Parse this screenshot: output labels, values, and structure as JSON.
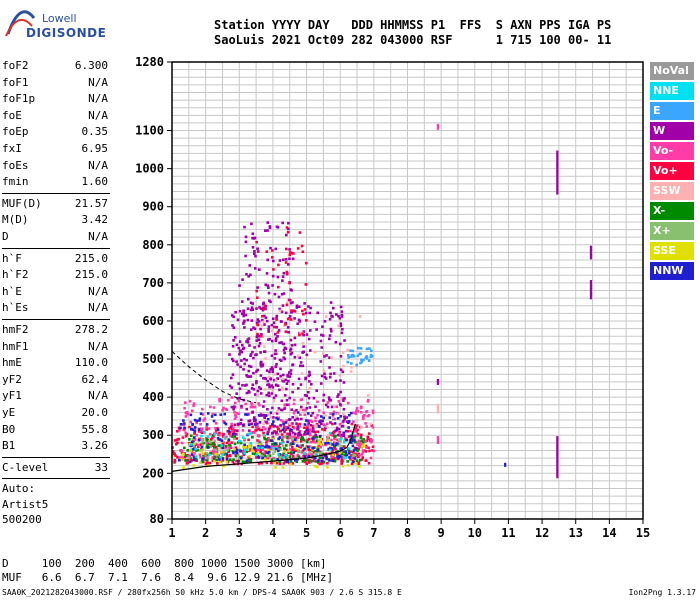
{
  "logo": {
    "line1": "Lowell",
    "line2": "DIGISONDE"
  },
  "header": {
    "labels": "Station YYYY DAY   DDD HHMMSS P1  FFS  S AXN PPS IGA PS",
    "values": "SaoLuis 2021 Oct09 282 043000 RSF      1 715 100 00- 11"
  },
  "params_groups": [
    [
      {
        "key": "foF2",
        "value": "6.300"
      },
      {
        "key": "foF1",
        "value": "N/A"
      },
      {
        "key": "foF1p",
        "value": "N/A"
      },
      {
        "key": "foE",
        "value": "N/A"
      },
      {
        "key": "foEp",
        "value": "0.35"
      },
      {
        "key": "fxI",
        "value": "6.95"
      },
      {
        "key": "foEs",
        "value": "N/A"
      },
      {
        "key": "fmin",
        "value": "1.60"
      }
    ],
    [
      {
        "key": "MUF(D)",
        "value": "21.57"
      },
      {
        "key": "M(D)",
        "value": "3.42"
      },
      {
        "key": "D",
        "value": "N/A"
      }
    ],
    [
      {
        "key": "h`F",
        "value": "215.0"
      },
      {
        "key": "h`F2",
        "value": "215.0"
      },
      {
        "key": "h`E",
        "value": "N/A"
      },
      {
        "key": "h`Es",
        "value": "N/A"
      }
    ],
    [
      {
        "key": "hmF2",
        "value": "278.2"
      },
      {
        "key": "hmF1",
        "value": "N/A"
      },
      {
        "key": "hmE",
        "value": "110.0"
      },
      {
        "key": "yF2",
        "value": "62.4"
      },
      {
        "key": "yF1",
        "value": "N/A"
      },
      {
        "key": "yE",
        "value": "20.0"
      },
      {
        "key": "B0",
        "value": "55.8"
      },
      {
        "key": "B1",
        "value": "3.26"
      }
    ],
    [
      {
        "key": "C-level",
        "value": "33"
      }
    ]
  ],
  "autoscaling": {
    "line1": "Auto:",
    "line2": "Artist5",
    "line3": "500200"
  },
  "legend": [
    {
      "label": "NoVal",
      "color": "#9a9a9a"
    },
    {
      "label": "NNE",
      "color": "#00e0f0"
    },
    {
      "label": "E",
      "color": "#3aa6ff"
    },
    {
      "label": "W",
      "color": "#a000a8"
    },
    {
      "label": "Vo-",
      "color": "#ff3ca8"
    },
    {
      "label": "Vo+",
      "color": "#ff0040"
    },
    {
      "label": "SSW",
      "color": "#ffb0b0"
    },
    {
      "label": "X-",
      "color": "#008a00"
    },
    {
      "label": "X+",
      "color": "#88c070"
    },
    {
      "label": "SSE",
      "color": "#e0e000"
    },
    {
      "label": "NNW",
      "color": "#2020d0"
    }
  ],
  "footer": {
    "d_line": "D     100  200  400  600  800 1000 1500 3000 [km]",
    "muf_line": "MUF   6.6  6.7  7.1  7.6  8.4  9.6 12.9 21.6 [MHz]",
    "file_line": "SAA0K_2021282043000.RSF / 280fx256h 50 kHz 5.0 km / DPS-4 SAA0K 903 / 2.6 S 315.8 E",
    "version": "Ion2Png 1.3.17"
  },
  "chart_data": {
    "type": "scatter",
    "xlim": [
      1,
      15
    ],
    "ylim": [
      80,
      1280
    ],
    "x_ticks": [
      1,
      2,
      3,
      4,
      5,
      6,
      7,
      8,
      9,
      10,
      11,
      12,
      13,
      14,
      15
    ],
    "y_ticks": [
      80,
      200,
      300,
      400,
      500,
      600,
      700,
      800,
      900,
      1000,
      1100,
      1280
    ],
    "y_tick_labels": [
      "80",
      "200",
      "300",
      "400",
      "500",
      "600",
      "700",
      "800",
      "900",
      "1000",
      "1100",
      "1280"
    ],
    "grid": true,
    "series": [
      {
        "name": "NoVal",
        "color": "#9a9a9a"
      },
      {
        "name": "NNE",
        "color": "#00e0f0"
      },
      {
        "name": "E",
        "color": "#3aa6ff"
      },
      {
        "name": "W",
        "color": "#a000a8"
      },
      {
        "name": "Vo-",
        "color": "#ff3ca8"
      },
      {
        "name": "Vo+",
        "color": "#ff0040"
      },
      {
        "name": "SSW",
        "color": "#ffb0b0"
      },
      {
        "name": "X-",
        "color": "#008a00"
      },
      {
        "name": "X+",
        "color": "#88c070"
      },
      {
        "name": "SSE",
        "color": "#e0e000"
      },
      {
        "name": "NNW",
        "color": "#2020d0"
      }
    ],
    "clusters": [
      {
        "series": "Vo+",
        "x": [
          1.0,
          7.0
        ],
        "y": [
          225,
          330
        ],
        "n": 420
      },
      {
        "series": "Vo-",
        "x": [
          1.2,
          7.0
        ],
        "y": [
          240,
          400
        ],
        "n": 340
      },
      {
        "series": "X-",
        "x": [
          1.3,
          6.8
        ],
        "y": [
          230,
          300
        ],
        "n": 160
      },
      {
        "series": "X+",
        "x": [
          1.5,
          6.5
        ],
        "y": [
          235,
          300
        ],
        "n": 80
      },
      {
        "series": "SSE",
        "x": [
          1.0,
          6.8
        ],
        "y": [
          215,
          290
        ],
        "n": 70
      },
      {
        "series": "NNW",
        "x": [
          1.2,
          6.5
        ],
        "y": [
          230,
          360
        ],
        "n": 200
      },
      {
        "series": "W",
        "x": [
          2.7,
          6.2
        ],
        "y": [
          300,
          650
        ],
        "n": 380
      },
      {
        "series": "W",
        "x": [
          3.0,
          4.6
        ],
        "y": [
          420,
          860
        ],
        "n": 160
      },
      {
        "series": "E",
        "x": [
          6.2,
          7.0
        ],
        "y": [
          480,
          530
        ],
        "n": 30
      },
      {
        "series": "NNE",
        "x": [
          1.5,
          6.5
        ],
        "y": [
          240,
          310
        ],
        "n": 40
      },
      {
        "series": "SSW",
        "x": [
          3.5,
          7.0
        ],
        "y": [
          300,
          650
        ],
        "n": 60
      },
      {
        "series": "Vo+",
        "x": [
          3.5,
          5.0
        ],
        "y": [
          560,
          850
        ],
        "n": 50
      }
    ],
    "isolated_points": [
      {
        "series": "W",
        "x": 12.45,
        "y": [
          935,
          1045
        ]
      },
      {
        "series": "W",
        "x": 12.45,
        "y": [
          190,
          295
        ]
      },
      {
        "series": "W",
        "x": 13.45,
        "y": [
          765,
          795
        ]
      },
      {
        "series": "W",
        "x": 13.45,
        "y": [
          660,
          705
        ]
      },
      {
        "series": "Vo-",
        "x": 8.9,
        "y": [
          280,
          295
        ]
      },
      {
        "series": "Vo-",
        "x": 8.9,
        "y": [
          1105,
          1115
        ]
      },
      {
        "series": "SSW",
        "x": 8.9,
        "y": [
          360,
          380
        ]
      },
      {
        "series": "W",
        "x": 8.9,
        "y": [
          435,
          445
        ]
      },
      {
        "series": "NNW",
        "x": 10.9,
        "y": [
          220,
          228
        ]
      }
    ],
    "profile_curve": {
      "x": [
        1.0,
        2.0,
        3.0,
        4.0,
        5.0,
        5.5,
        6.0,
        6.2,
        6.3,
        6.45
      ],
      "y": [
        205,
        218,
        225,
        232,
        240,
        248,
        258,
        268,
        285,
        330
      ]
    },
    "profile_dashed": {
      "x": [
        1.0,
        1.5,
        2.0,
        2.5,
        3.0,
        3.5
      ],
      "y": [
        520,
        480,
        445,
        415,
        395,
        385
      ]
    }
  }
}
